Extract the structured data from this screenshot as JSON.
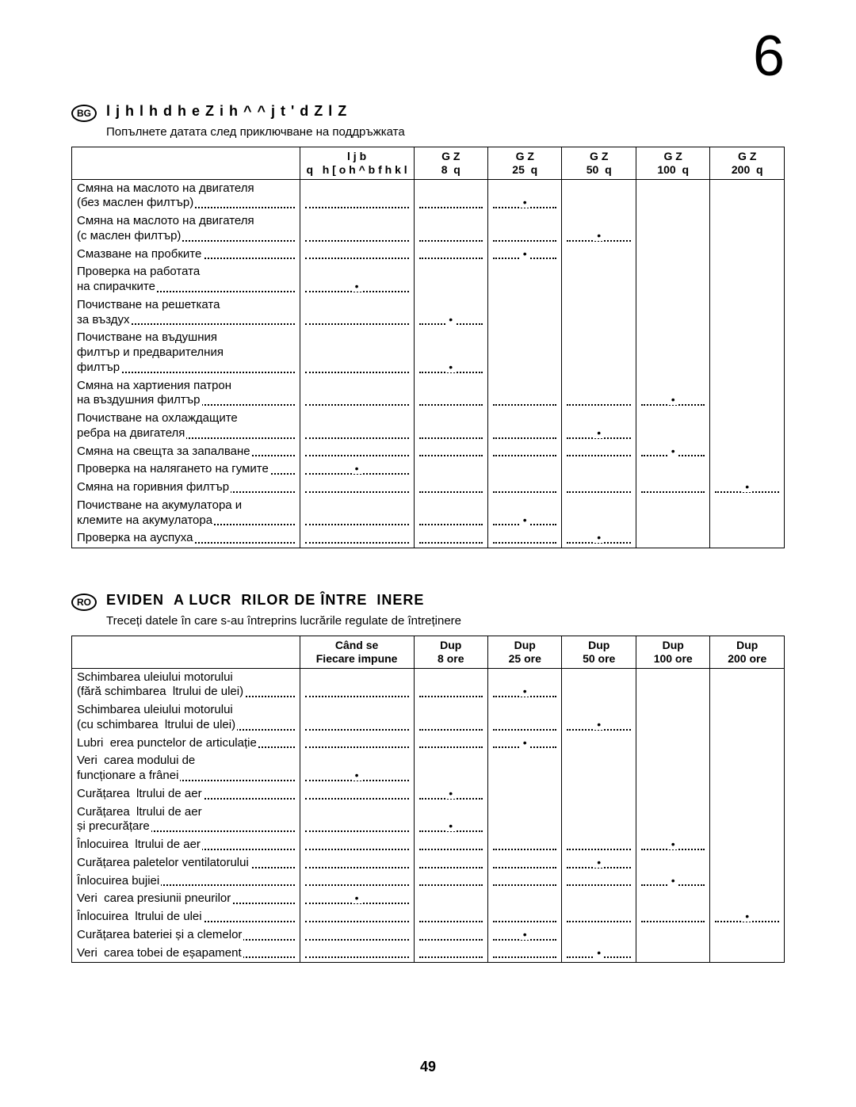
{
  "page_number_top": "6",
  "page_number_bottom": "49",
  "sections": [
    {
      "lang": "BG",
      "title": "l j h l h d h e Z i h ^ ^ j t ' d Z l Z",
      "subtitle": "Попълнете датата след приключване на поддръжката",
      "headers": {
        "task": "",
        "required": "l j b\nq   h [ o h ^ b f h k l",
        "intervals": [
          "G Z\n8  q",
          "G Z\n25  q",
          "G Z\n50  q",
          "G Z\n100  q",
          "G Z\n200  q"
        ]
      },
      "rows": [
        {
          "lines": [
            "Смяна на маслото на двигателя",
            "(без маслен филтър)"
          ],
          "mark": 2
        },
        {
          "lines": [
            "Смяна на маслото на двигателя",
            "(с маслен филтър)"
          ],
          "mark": 3
        },
        {
          "lines": [
            "Смазване на пробките"
          ],
          "mark": 2
        },
        {
          "lines": [
            "Проверка на работата",
            "на спирачките"
          ],
          "mark": 0
        },
        {
          "lines": [
            "Почистване на решетката",
            "за въздух"
          ],
          "mark": 1
        },
        {
          "lines": [
            "Почистване на въдушния",
            "филтър и предварителния",
            "филтър"
          ],
          "mark": 1
        },
        {
          "lines": [
            "Смяна на хартиения патрон",
            "на въздушния филтър"
          ],
          "mark": 4
        },
        {
          "lines": [
            "Почистване на охлаждащите",
            "ребра на двигателя"
          ],
          "mark": 3
        },
        {
          "lines": [
            "Смяна на свещта за запалване"
          ],
          "mark": 4
        },
        {
          "lines": [
            "Проверка на налягането на гумите"
          ],
          "mark": 0
        },
        {
          "lines": [
            "Смяна на горивния филтър"
          ],
          "mark": 5
        },
        {
          "lines": [
            "Почистване на акумулатора и",
            "клемите на акумулатора"
          ],
          "mark": 2
        },
        {
          "lines": [
            "Проверка на ауспуха"
          ],
          "mark": 3
        }
      ]
    },
    {
      "lang": "RO",
      "title": "EVIDEN  A LUCR  RILOR DE ÎNTRE  INERE",
      "subtitle": "Treceți datele în care s-au întreprins lucrările regulate de întreținere",
      "headers": {
        "task": "",
        "required": "Când se\nFiecare impune",
        "intervals": [
          "Dup\n8 ore",
          "Dup\n25 ore",
          "Dup\n50 ore",
          "Dup\n100 ore",
          "Dup\n200 ore"
        ]
      },
      "rows": [
        {
          "lines": [
            "Schimbarea uleiului motorului",
            "(fără schimbarea  ltrului de ulei)"
          ],
          "mark": 2
        },
        {
          "lines": [
            "Schimbarea uleiului motorului",
            "(cu schimbarea  ltrului de ulei)"
          ],
          "mark": 3
        },
        {
          "lines": [
            "Lubri  erea punctelor de articulație"
          ],
          "mark": 2
        },
        {
          "lines": [
            "Veri  carea modului de",
            "funcționare a frânei"
          ],
          "mark": 0
        },
        {
          "lines": [
            "Curățarea  ltrului de aer"
          ],
          "mark": 1
        },
        {
          "lines": [
            "Curățarea  ltrului de aer",
            "și precurățare"
          ],
          "mark": 1
        },
        {
          "lines": [
            "Înlocuirea  ltrului de aer"
          ],
          "mark": 4
        },
        {
          "lines": [
            "Curățarea paletelor ventilatorului"
          ],
          "mark": 3
        },
        {
          "lines": [
            "Înlocuirea bujiei"
          ],
          "mark": 4
        },
        {
          "lines": [
            "Veri  carea presiunii pneurilor"
          ],
          "mark": 0
        },
        {
          "lines": [
            "Înlocuirea  ltrului de ulei"
          ],
          "mark": 5
        },
        {
          "lines": [
            "Curățarea bateriei și a clemelor"
          ],
          "mark": 2
        },
        {
          "lines": [
            "Veri  carea tobei de eșapament"
          ],
          "mark": 3
        }
      ]
    }
  ]
}
